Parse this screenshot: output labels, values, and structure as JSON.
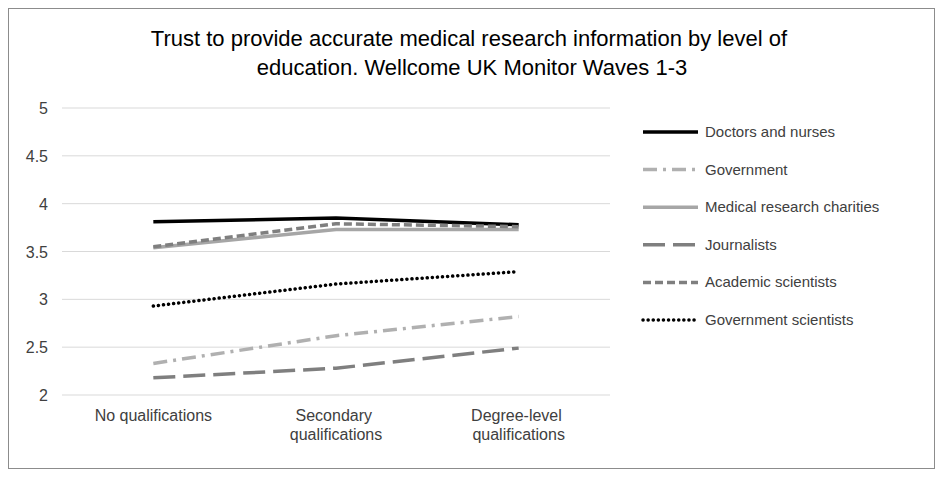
{
  "chart_data": {
    "type": "line",
    "title": "Trust to provide accurate medical research information by level of education. Wellcome UK Monitor Waves 1-3",
    "categories": [
      "No qualifications",
      "Secondary qualifications",
      "Degree-level qualifications"
    ],
    "series": [
      {
        "name": "Doctors and nurses",
        "color": "#000000",
        "line_style": "solid",
        "values": [
          3.81,
          3.85,
          3.78
        ]
      },
      {
        "name": "Government",
        "color": "#b0b0b0",
        "line_style": "dash_dot",
        "values": [
          2.33,
          2.62,
          2.82
        ]
      },
      {
        "name": "Medical research charities",
        "color": "#a6a6a6",
        "line_style": "solid",
        "values": [
          3.54,
          3.73,
          3.73
        ]
      },
      {
        "name": "Journalists",
        "color": "#7f7f7f",
        "line_style": "long_dash",
        "values": [
          2.18,
          2.28,
          2.49
        ]
      },
      {
        "name": "Academic scientists",
        "color": "#7f7f7f",
        "line_style": "dashed",
        "values": [
          3.55,
          3.79,
          3.76
        ]
      },
      {
        "name": "Government scientists",
        "color": "#000000",
        "line_style": "dotted",
        "values": [
          2.93,
          3.16,
          3.29
        ]
      }
    ],
    "ylim": [
      2,
      5
    ],
    "yticks": [
      2,
      2.5,
      3,
      3.5,
      4,
      4.5,
      5
    ],
    "grid": true,
    "legend": "right"
  }
}
